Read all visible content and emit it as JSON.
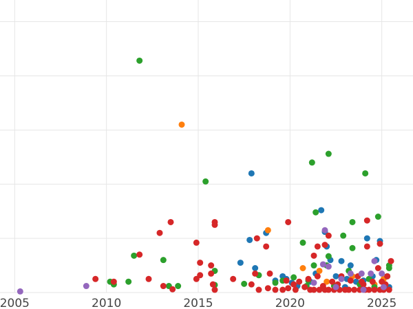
{
  "chart_data": {
    "type": "scatter",
    "title": "",
    "xlabel": "",
    "ylabel": "",
    "x_ticks": [
      2005,
      2010,
      2015,
      2020,
      2025
    ],
    "xlim": [
      2004.2,
      2026.7
    ],
    "ylim": [
      0,
      5.4
    ],
    "grid": true,
    "legend": "none",
    "series": [
      {
        "color": "#1f77b4",
        "points": [
          [
            2017.3,
            0.55
          ],
          [
            2017.9,
            2.2
          ],
          [
            2018.1,
            0.45
          ],
          [
            2018.7,
            1.1
          ],
          [
            2017.8,
            0.97
          ],
          [
            2019.2,
            0.22
          ],
          [
            2019.6,
            0.3
          ],
          [
            2019.8,
            0.25
          ],
          [
            2020.1,
            0.18
          ],
          [
            2020.4,
            0.12
          ],
          [
            2021.1,
            0.2
          ],
          [
            2021.4,
            0.35
          ],
          [
            2021.7,
            1.52
          ],
          [
            2021.9,
            1.12
          ],
          [
            2022.0,
            0.85
          ],
          [
            2022.2,
            0.6
          ],
          [
            2022.5,
            0.3
          ],
          [
            2022.8,
            0.58
          ],
          [
            2023.1,
            0.25
          ],
          [
            2023.3,
            0.5
          ],
          [
            2023.6,
            0.2
          ],
          [
            2023.9,
            0.14
          ],
          [
            2024.2,
            1.0
          ],
          [
            2024.5,
            0.3
          ],
          [
            2024.7,
            0.6
          ],
          [
            2024.9,
            0.95
          ],
          [
            2025.2,
            0.12
          ],
          [
            2025.4,
            0.1
          ],
          [
            2024.0,
            0.22
          ],
          [
            2023.0,
            0.1
          ]
        ]
      },
      {
        "color": "#ff7f0e",
        "points": [
          [
            2014.1,
            3.1
          ],
          [
            2018.8,
            1.15
          ],
          [
            2020.7,
            0.45
          ],
          [
            2021.6,
            0.4
          ],
          [
            2022.0,
            0.2
          ],
          [
            2023.4,
            0.3
          ],
          [
            2024.6,
            0.15
          ],
          [
            2025.1,
            0.25
          ]
        ]
      },
      {
        "color": "#2ca02c",
        "points": [
          [
            2011.8,
            4.28
          ],
          [
            2015.4,
            2.05
          ],
          [
            2021.2,
            2.4
          ],
          [
            2022.1,
            2.56
          ],
          [
            2024.1,
            2.2
          ],
          [
            2023.4,
            1.3
          ],
          [
            2024.8,
            1.4
          ],
          [
            2021.4,
            1.48
          ],
          [
            2022.9,
            1.05
          ],
          [
            2020.7,
            0.92
          ],
          [
            2023.4,
            0.82
          ],
          [
            2022.1,
            0.67
          ],
          [
            2011.5,
            0.68
          ],
          [
            2013.1,
            0.6
          ],
          [
            2015.9,
            0.4
          ],
          [
            2018.3,
            0.32
          ],
          [
            2019.2,
            0.18
          ],
          [
            2019.6,
            0.22
          ],
          [
            2020.2,
            0.28
          ],
          [
            2021.0,
            0.22
          ],
          [
            2021.3,
            0.5
          ],
          [
            2022.0,
            0.5
          ],
          [
            2023.2,
            0.4
          ],
          [
            2024.3,
            0.25
          ],
          [
            2025.4,
            0.5
          ],
          [
            2025.4,
            0.45
          ],
          [
            2025.3,
            0.3
          ],
          [
            2010.2,
            0.2
          ],
          [
            2010.4,
            0.15
          ],
          [
            2011.2,
            0.2
          ],
          [
            2013.4,
            0.12
          ],
          [
            2013.9,
            0.12
          ],
          [
            2017.5,
            0.16
          ],
          [
            2015.9,
            0.14
          ],
          [
            2022.4,
            0.12
          ],
          [
            2023.8,
            0.15
          ],
          [
            2024.6,
            0.1
          ],
          [
            2020.9,
            0.12
          ]
        ]
      },
      {
        "color": "#d62728",
        "points": [
          [
            2013.5,
            1.3
          ],
          [
            2015.9,
            1.3
          ],
          [
            2015.9,
            1.25
          ],
          [
            2019.9,
            1.3
          ],
          [
            2024.2,
            1.33
          ],
          [
            2012.9,
            1.1
          ],
          [
            2014.9,
            0.92
          ],
          [
            2018.2,
            1.0
          ],
          [
            2018.7,
            0.85
          ],
          [
            2021.5,
            0.85
          ],
          [
            2021.9,
            0.88
          ],
          [
            2022.1,
            1.05
          ],
          [
            2024.2,
            0.85
          ],
          [
            2024.9,
            0.9
          ],
          [
            2011.8,
            0.7
          ],
          [
            2015.1,
            0.55
          ],
          [
            2015.7,
            0.5
          ],
          [
            2021.3,
            0.68
          ],
          [
            2025.5,
            0.58
          ],
          [
            2015.1,
            0.32
          ],
          [
            2015.7,
            0.35
          ],
          [
            2016.9,
            0.25
          ],
          [
            2018.1,
            0.35
          ],
          [
            2018.9,
            0.35
          ],
          [
            2019.8,
            0.22
          ],
          [
            2020.5,
            0.2
          ],
          [
            2021.0,
            0.25
          ],
          [
            2021.5,
            0.3
          ],
          [
            2022.3,
            0.2
          ],
          [
            2022.8,
            0.3
          ],
          [
            2023.3,
            0.22
          ],
          [
            2023.7,
            0.3
          ],
          [
            2024.0,
            0.15
          ],
          [
            2024.8,
            0.45
          ],
          [
            2025.0,
            0.2
          ],
          [
            2025.3,
            0.3
          ],
          [
            2009.4,
            0.25
          ],
          [
            2010.4,
            0.2
          ],
          [
            2012.3,
            0.25
          ],
          [
            2013.1,
            0.12
          ],
          [
            2013.6,
            0.06
          ],
          [
            2014.9,
            0.25
          ],
          [
            2015.8,
            0.15
          ],
          [
            2015.9,
            0.05
          ],
          [
            2017.9,
            0.15
          ],
          [
            2018.3,
            0.05
          ],
          [
            2018.8,
            0.08
          ],
          [
            2019.2,
            0.05
          ],
          [
            2019.6,
            0.05
          ],
          [
            2019.9,
            0.08
          ],
          [
            2020.3,
            0.05
          ],
          [
            2020.8,
            0.1
          ],
          [
            2021.1,
            0.05
          ],
          [
            2021.3,
            0.05
          ],
          [
            2021.6,
            0.05
          ],
          [
            2021.9,
            0.05
          ],
          [
            2022.1,
            0.05
          ],
          [
            2022.4,
            0.05
          ],
          [
            2022.7,
            0.05
          ],
          [
            2023.0,
            0.05
          ],
          [
            2023.2,
            0.05
          ],
          [
            2023.5,
            0.05
          ],
          [
            2023.8,
            0.05
          ],
          [
            2024.1,
            0.05
          ],
          [
            2024.3,
            0.05
          ],
          [
            2024.6,
            0.05
          ],
          [
            2024.9,
            0.05
          ],
          [
            2025.1,
            0.05
          ],
          [
            2025.4,
            0.05
          ],
          [
            2022.6,
            0.15
          ],
          [
            2023.9,
            0.2
          ],
          [
            2024.5,
            0.2
          ],
          [
            2020.2,
            0.15
          ],
          [
            2021.8,
            0.12
          ],
          [
            2025.2,
            0.15
          ]
        ]
      },
      {
        "color": "#9467bd",
        "points": [
          [
            2005.3,
            0.02
          ],
          [
            2008.9,
            0.12
          ],
          [
            2021.9,
            1.15
          ],
          [
            2021.8,
            0.52
          ],
          [
            2022.1,
            0.48
          ],
          [
            2024.6,
            0.58
          ],
          [
            2022.5,
            0.1
          ],
          [
            2022.8,
            0.25
          ],
          [
            2023.3,
            0.35
          ],
          [
            2023.9,
            0.35
          ],
          [
            2024.4,
            0.35
          ],
          [
            2025.0,
            0.35
          ],
          [
            2021.3,
            0.18
          ],
          [
            2024.0,
            0.05
          ],
          [
            2025.1,
            0.1
          ]
        ]
      }
    ]
  }
}
